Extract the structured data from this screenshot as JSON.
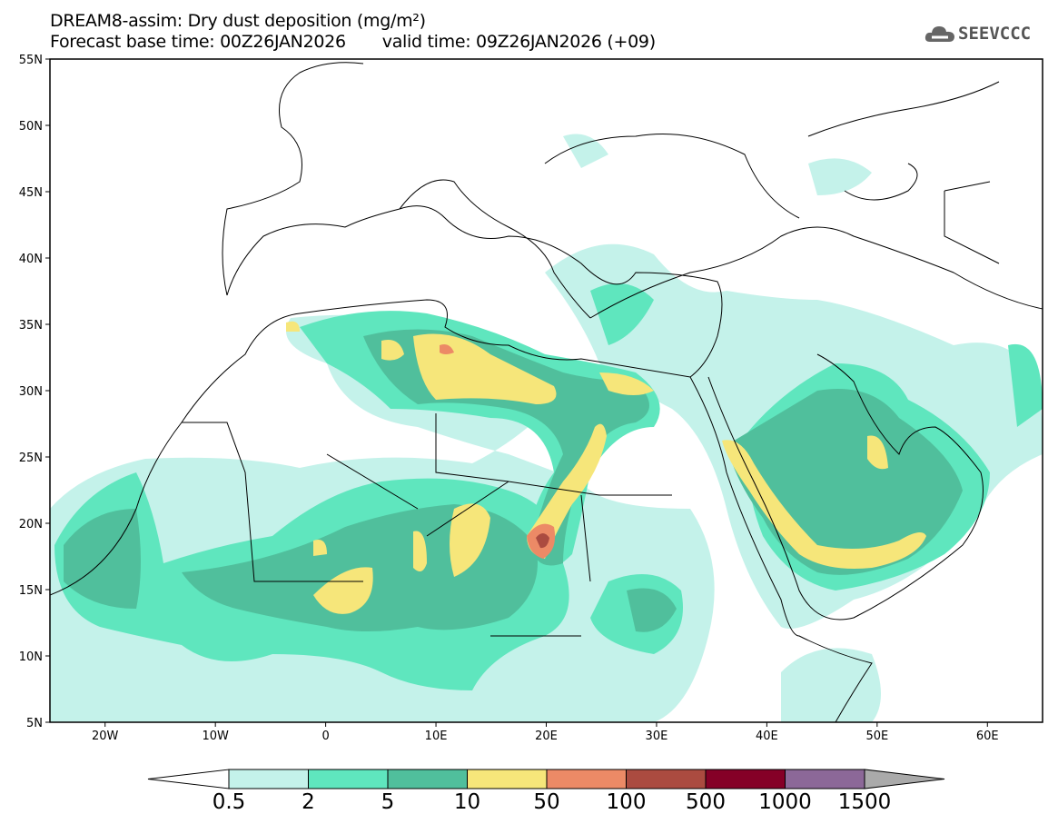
{
  "title": {
    "line1": "DREAM8-assim: Dry dust deposition (mg/m²)",
    "base_time": "Forecast base time: 00Z26JAN2026",
    "valid_time": "valid time: 09Z26JAN2026 (+09)"
  },
  "logo": {
    "text": "SEEVCCC"
  },
  "map": {
    "lon_range": [
      -25,
      65
    ],
    "lat_range": [
      5,
      55
    ],
    "lat_ticks": [
      "55N",
      "50N",
      "45N",
      "40N",
      "35N",
      "30N",
      "25N",
      "20N",
      "15N",
      "10N",
      "5N"
    ],
    "lon_ticks": [
      "20W",
      "10W",
      "0",
      "10E",
      "20E",
      "30E",
      "40E",
      "50E",
      "60E"
    ]
  },
  "colorbar": {
    "labels": [
      "0.5",
      "2",
      "5",
      "10",
      "50",
      "100",
      "500",
      "1000",
      "1500"
    ],
    "colors": [
      "#c4f2ea",
      "#5fe6be",
      "#50bf9c",
      "#f6e67a",
      "#ec8a66",
      "#ab4b40",
      "#850027",
      "#8c6898"
    ],
    "under_color": "#ffffff",
    "over_color": "#aaaaaa"
  }
}
